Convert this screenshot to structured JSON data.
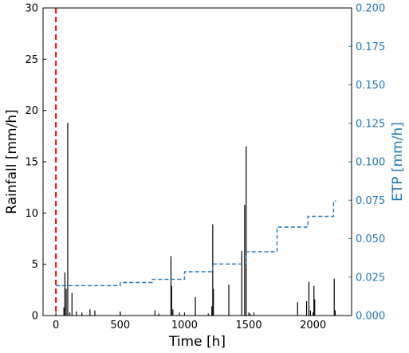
{
  "chart_data": {
    "type": "bar",
    "xlabel": "Time [h]",
    "ylabel": "Rainfall [mm/h]",
    "y2label": "ETP [mm/h]",
    "xlim": [
      -100,
      2300
    ],
    "ylim": [
      0,
      30
    ],
    "y2lim": [
      0,
      0.2
    ],
    "xticks": [
      "0",
      "500",
      "1000",
      "1500",
      "2000"
    ],
    "xtick_values": [
      0,
      500,
      1000,
      1500,
      2000
    ],
    "yticks": [
      "0",
      "5",
      "10",
      "15",
      "20",
      "25",
      "30"
    ],
    "ytick_values": [
      0,
      5,
      10,
      15,
      20,
      25,
      30
    ],
    "y2ticks": [
      "0.000",
      "0.025",
      "0.050",
      "0.075",
      "0.100",
      "0.125",
      "0.150",
      "0.175",
      "0.200"
    ],
    "y2tick_values": [
      0,
      0.025,
      0.05,
      0.075,
      0.1,
      0.125,
      0.15,
      0.175,
      0.2
    ],
    "grid": false,
    "legend": "none",
    "colors": {
      "rainfall": "#000000",
      "etp": "#1f77b4",
      "marker": "#ff0000",
      "axis_right": "#1f77b4"
    },
    "vline": {
      "x": 0,
      "style": "dashed",
      "color": "#ff0000"
    },
    "rainfall_series": {
      "x": [
        62,
        70,
        80,
        92,
        108,
        125,
        160,
        202,
        265,
        303,
        500,
        770,
        800,
        895,
        900,
        910,
        960,
        1085,
        1185,
        1213,
        1220,
        1225,
        1345,
        1446,
        1468,
        1480,
        1510,
        1540,
        1880,
        1950,
        1968,
        1980,
        2007,
        2013,
        2165,
        2172
      ],
      "values": [
        0.8,
        4.2,
        2.6,
        18.8,
        0.3,
        2.2,
        0.4,
        0.3,
        0.6,
        0.5,
        0.4,
        0.5,
        0.2,
        5.8,
        2.9,
        0.6,
        0.3,
        1.8,
        0.2,
        0.9,
        8.9,
        2.6,
        3.0,
        6.3,
        10.8,
        16.5,
        0.2,
        0.3,
        1.3,
        1.4,
        3.3,
        0.5,
        2.9,
        1.6,
        3.6,
        0.5
      ]
    },
    "etp_series": {
      "style": "dashed-step",
      "x": [
        0,
        500,
        750,
        1000,
        1220,
        1480,
        1720,
        1960,
        2160,
        2180
      ],
      "values": [
        0.0195,
        0.0215,
        0.0235,
        0.0285,
        0.0335,
        0.0415,
        0.0575,
        0.0645,
        0.0745,
        0.0745
      ]
    }
  }
}
